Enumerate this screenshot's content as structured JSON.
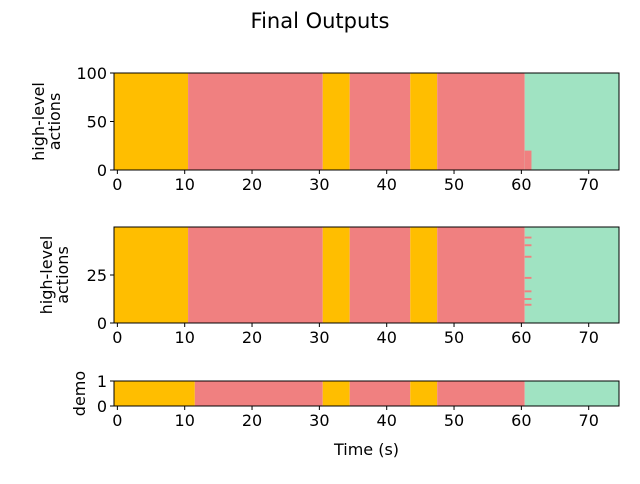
{
  "title": "Final Outputs",
  "colors": {
    "orange": "#FFBE00",
    "red": "#F08080",
    "green": "#A0E3C2"
  },
  "chart_data": [
    {
      "type": "heatmap",
      "ylabel": [
        "high-level",
        "actions"
      ],
      "xlabel": "",
      "xlim": [
        -0.5,
        74.5
      ],
      "ylim": [
        0,
        100
      ],
      "yticks": [
        0,
        50,
        100
      ],
      "xticks": [
        0,
        10,
        20,
        30,
        40,
        50,
        60,
        70
      ],
      "segments": [
        {
          "start": -0.5,
          "end": 10.5,
          "color": "orange"
        },
        {
          "start": 10.5,
          "end": 30.5,
          "color": "red"
        },
        {
          "start": 30.5,
          "end": 34.5,
          "color": "orange"
        },
        {
          "start": 34.5,
          "end": 43.5,
          "color": "red"
        },
        {
          "start": 43.5,
          "end": 47.5,
          "color": "orange"
        },
        {
          "start": 47.5,
          "end": 60.5,
          "color": "red"
        },
        {
          "start": 60.5,
          "end": 74.5,
          "color": "green"
        }
      ],
      "patches": [
        {
          "start": 60.5,
          "end": 61.5,
          "ymin": 0,
          "ymax": 20,
          "color": "red"
        }
      ]
    },
    {
      "type": "heatmap",
      "ylabel": [
        "high-level",
        "actions"
      ],
      "xlabel": "",
      "xlim": [
        -0.5,
        74.5
      ],
      "ylim": [
        0,
        50
      ],
      "yticks": [
        0,
        25
      ],
      "xticks": [
        0,
        10,
        20,
        30,
        40,
        50,
        60,
        70
      ],
      "segments": [
        {
          "start": -0.5,
          "end": 10.5,
          "color": "orange"
        },
        {
          "start": 10.5,
          "end": 30.5,
          "color": "red"
        },
        {
          "start": 30.5,
          "end": 34.5,
          "color": "orange"
        },
        {
          "start": 34.5,
          "end": 43.5,
          "color": "red"
        },
        {
          "start": 43.5,
          "end": 47.5,
          "color": "orange"
        },
        {
          "start": 47.5,
          "end": 60.5,
          "color": "red"
        },
        {
          "start": 60.5,
          "end": 74.5,
          "color": "green"
        }
      ],
      "patches": [
        {
          "start": 60.5,
          "end": 61.5,
          "ymin": 44,
          "ymax": 45,
          "color": "red"
        },
        {
          "start": 60.5,
          "end": 61.5,
          "ymin": 40,
          "ymax": 41,
          "color": "red"
        },
        {
          "start": 60.5,
          "end": 61.5,
          "ymin": 34,
          "ymax": 35,
          "color": "red"
        },
        {
          "start": 60.5,
          "end": 61.5,
          "ymin": 23,
          "ymax": 24,
          "color": "red"
        },
        {
          "start": 60.5,
          "end": 61.5,
          "ymin": 16,
          "ymax": 17,
          "color": "red"
        },
        {
          "start": 60.0,
          "end": 61.5,
          "ymin": 12,
          "ymax": 13,
          "color": "red"
        },
        {
          "start": 60.5,
          "end": 61.5,
          "ymin": 9,
          "ymax": 10,
          "color": "red"
        }
      ]
    },
    {
      "type": "heatmap",
      "ylabel": [
        "demo"
      ],
      "xlabel": "Time (s)",
      "xlim": [
        -0.5,
        74.5
      ],
      "ylim": [
        0,
        1
      ],
      "yticks": [
        0,
        1
      ],
      "xticks": [
        0,
        10,
        20,
        30,
        40,
        50,
        60,
        70
      ],
      "segments": [
        {
          "start": -0.5,
          "end": 11.5,
          "color": "orange"
        },
        {
          "start": 11.5,
          "end": 30.5,
          "color": "red"
        },
        {
          "start": 30.5,
          "end": 34.5,
          "color": "orange"
        },
        {
          "start": 34.5,
          "end": 43.5,
          "color": "red"
        },
        {
          "start": 43.5,
          "end": 47.5,
          "color": "orange"
        },
        {
          "start": 47.5,
          "end": 60.5,
          "color": "red"
        },
        {
          "start": 60.5,
          "end": 74.5,
          "color": "green"
        }
      ],
      "patches": []
    }
  ]
}
